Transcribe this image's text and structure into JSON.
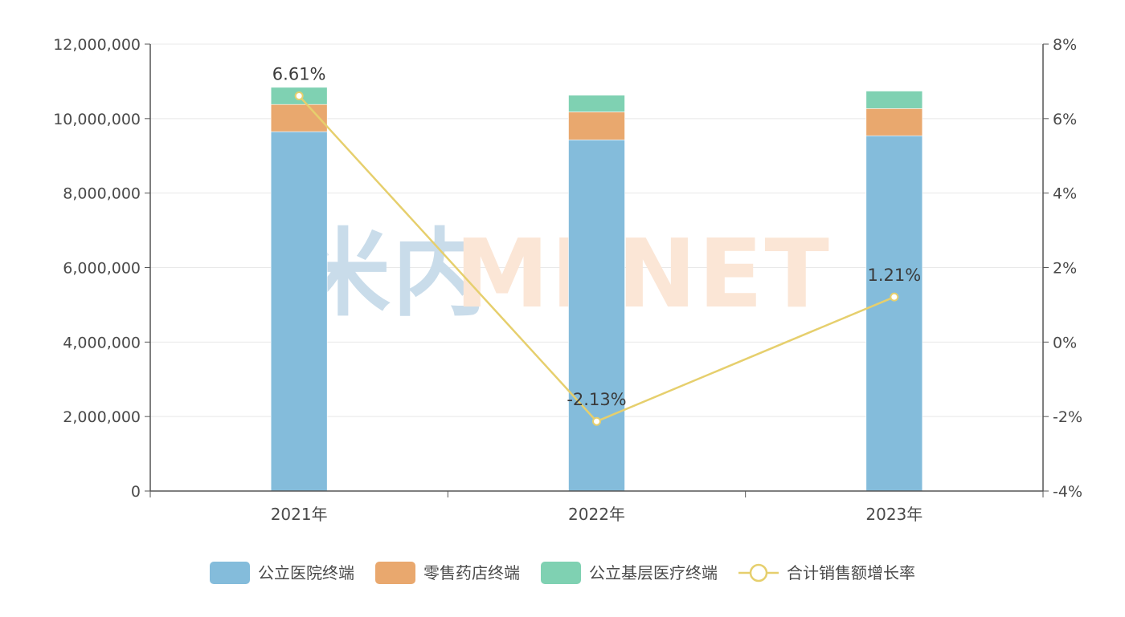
{
  "chart_data": {
    "type": "bar",
    "stacked": true,
    "categories": [
      "2021年",
      "2022年",
      "2023年"
    ],
    "series": [
      {
        "name": "公立医院终端",
        "type": "bar",
        "axis": "left",
        "color": "#84bcdb",
        "values": [
          9650000,
          9430000,
          9540000
        ]
      },
      {
        "name": "零售药店终端",
        "type": "bar",
        "axis": "left",
        "color": "#e9a86e",
        "values": [
          730000,
          750000,
          730000
        ]
      },
      {
        "name": "公立基层医疗终端",
        "type": "bar",
        "axis": "left",
        "color": "#7fd1b2",
        "values": [
          460000,
          450000,
          470000
        ]
      },
      {
        "name": "合计销售额增长率",
        "type": "line",
        "axis": "right",
        "color": "#e6cf6d",
        "values": [
          6.61,
          -2.13,
          1.21
        ],
        "labels": [
          "6.61%",
          "-2.13%",
          "1.21%"
        ]
      }
    ],
    "y_left": {
      "min": 0,
      "max": 12000000,
      "ticks": [
        "0",
        "2,000,000",
        "4,000,000",
        "6,000,000",
        "8,000,000",
        "10,000,000",
        "12,000,000"
      ]
    },
    "y_right": {
      "min": -4,
      "max": 8,
      "ticks": [
        "-4%",
        "-2%",
        "0%",
        "2%",
        "4%",
        "6%",
        "8%"
      ]
    },
    "grid": true,
    "legend_position": "bottom"
  },
  "watermark": {
    "left_text": "米内",
    "right_text": "MENET",
    "left_color": "#c9dcea",
    "right_color": "#fbe6d6"
  }
}
